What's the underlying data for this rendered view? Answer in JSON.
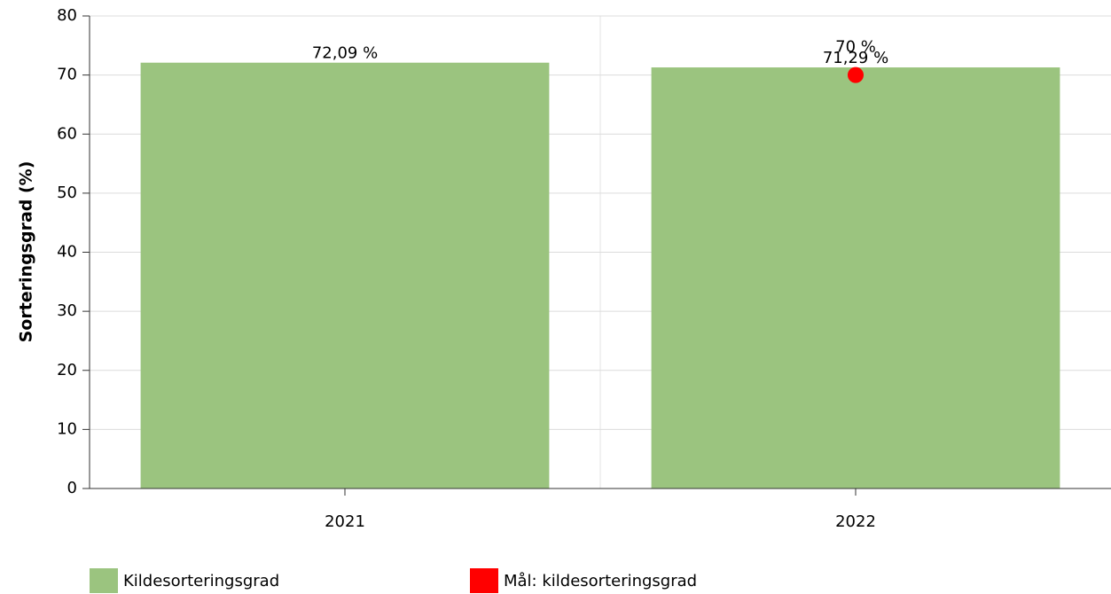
{
  "chart_data": {
    "type": "bar",
    "ylabel": "Sorteringsgrad (%)",
    "categories": [
      "2021",
      "2022"
    ],
    "series": [
      {
        "name": "Kildesorteringsgrad",
        "type": "bar",
        "color": "#9bc47f",
        "values": [
          72.09,
          71.29
        ],
        "value_labels": [
          "72,09 %",
          "71,29 %"
        ]
      },
      {
        "name": "Mål: kildesorteringsgrad",
        "type": "scatter",
        "color": "#ff0000",
        "values": [
          null,
          70
        ],
        "value_labels": [
          null,
          "70 %"
        ]
      }
    ],
    "ylim": [
      0,
      80
    ],
    "yticks": [
      0,
      10,
      20,
      30,
      40,
      50,
      60,
      70,
      80
    ],
    "grid": true
  }
}
